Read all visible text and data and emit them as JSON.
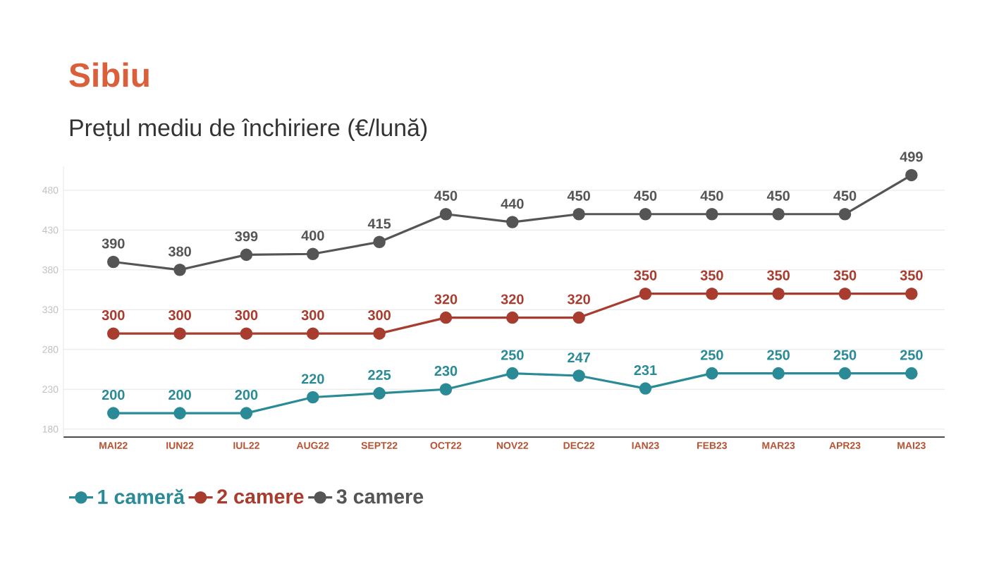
{
  "chart_data": {
    "type": "line",
    "title": "Sibiu",
    "subtitle": "Prețul mediu de închiriere (€/lună)",
    "categories": [
      "MAI22",
      "IUN22",
      "IUL22",
      "AUG22",
      "SEPT22",
      "OCT22",
      "NOV22",
      "DEC22",
      "IAN23",
      "FEB23",
      "MAR23",
      "APR23",
      "MAI23"
    ],
    "series": [
      {
        "name": "1 cameră",
        "color": "#2a8b96",
        "values": [
          200,
          200,
          200,
          220,
          225,
          230,
          250,
          247,
          231,
          250,
          250,
          250,
          250
        ]
      },
      {
        "name": "2 camere",
        "color": "#a83c2e",
        "values": [
          300,
          300,
          300,
          300,
          300,
          320,
          320,
          320,
          350,
          350,
          350,
          350,
          350
        ]
      },
      {
        "name": "3 camere",
        "color": "#555555",
        "values": [
          390,
          380,
          399,
          400,
          415,
          450,
          440,
          450,
          450,
          450,
          450,
          450,
          499
        ]
      }
    ],
    "ylim": [
      170,
      510
    ],
    "yticks": [
      180,
      230,
      280,
      330,
      380,
      430,
      480
    ],
    "grid": "y",
    "legend": "bottom left",
    "marker": "circle",
    "line_style": "solid",
    "data_labels": true
  }
}
